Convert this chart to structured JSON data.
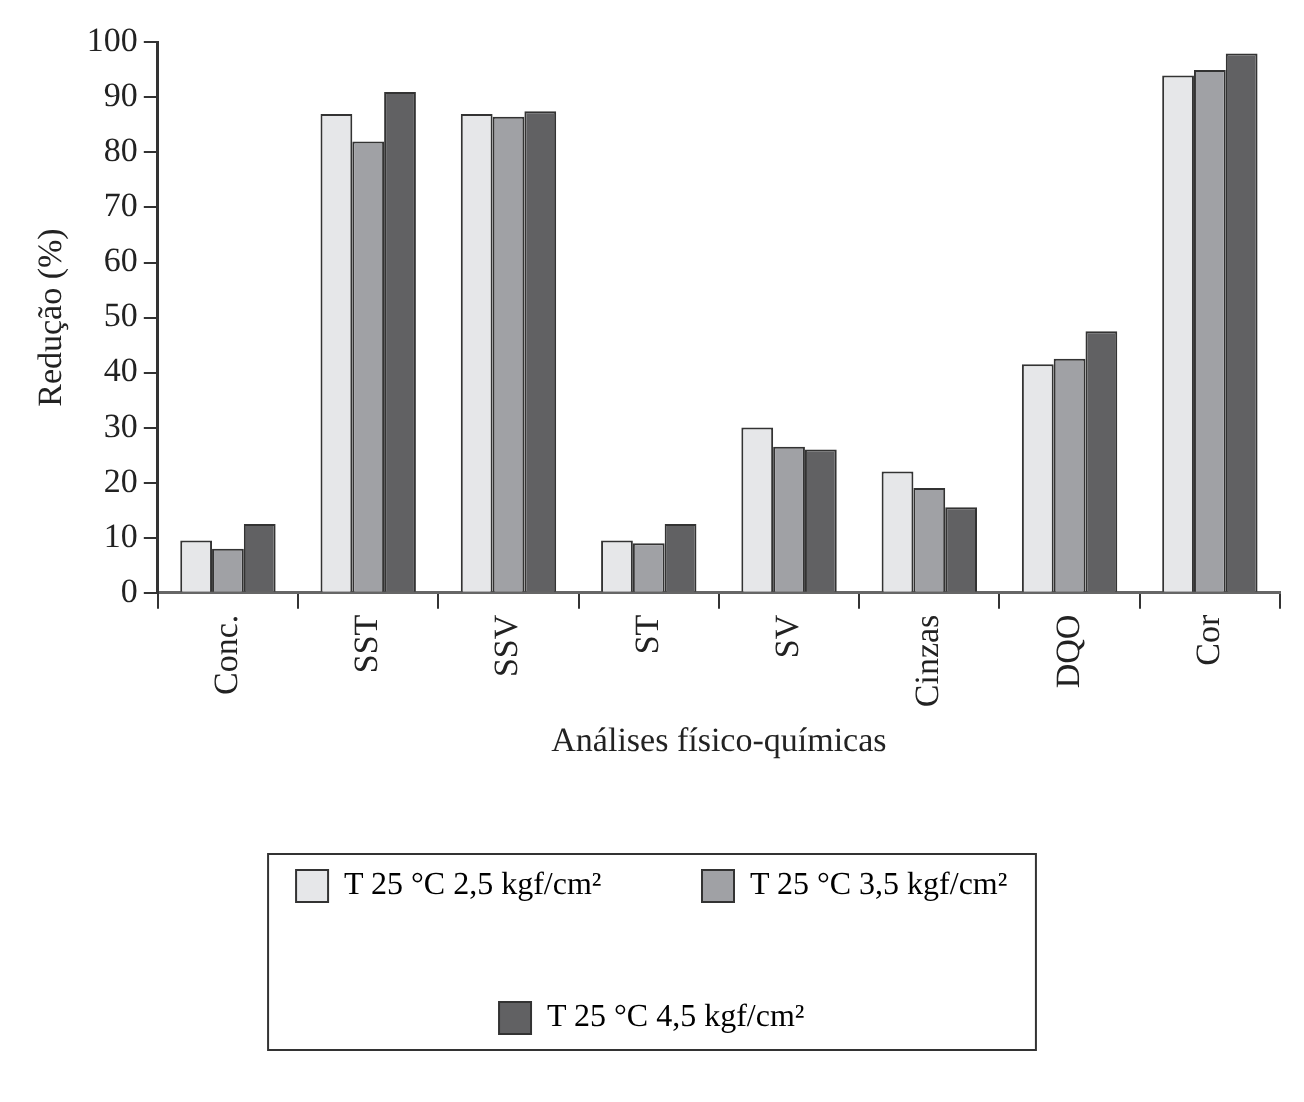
{
  "chart_data": {
    "type": "bar",
    "xlabel": "Análises físico-químicas",
    "ylabel": "Redução (%)",
    "categories": [
      "Conc.",
      "SST",
      "SSV",
      "ST",
      "SV",
      "Cinzas",
      "DQO",
      "Cor"
    ],
    "series": [
      {
        "name": "T 25 °C 2,5 kgf/cm²",
        "color": "#e6e7e9",
        "values": [
          9.5,
          87,
          87,
          9.5,
          30,
          22,
          41.5,
          94
        ]
      },
      {
        "name": "T 25 °C 3,5 kgf/cm²",
        "color": "#a0a1a5",
        "values": [
          8,
          82,
          86.5,
          9,
          26.5,
          19,
          42.5,
          95
        ]
      },
      {
        "name": "T 25 °C 4,5 kgf/cm²",
        "color": "#616163",
        "values": [
          12.5,
          91,
          87.5,
          12.5,
          26,
          15.5,
          47.5,
          98
        ]
      }
    ],
    "ylim": [
      0,
      100
    ],
    "yticks": [
      0,
      10,
      20,
      30,
      40,
      50,
      60,
      70,
      80,
      90,
      100
    ],
    "grid": false,
    "legend": "bottom"
  }
}
